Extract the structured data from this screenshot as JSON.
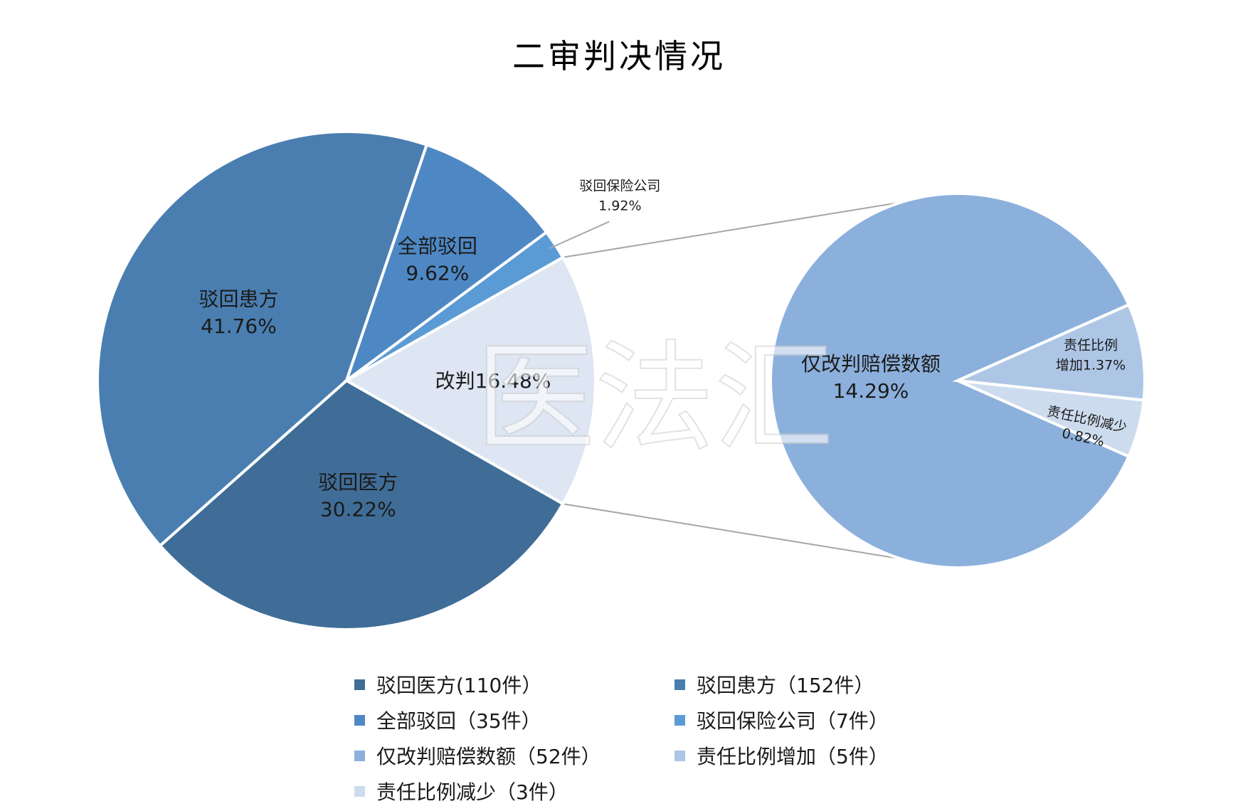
{
  "chart_data": {
    "type": "pie",
    "subtype": "pie-of-pie",
    "title": "二审判决情况",
    "main_pie": {
      "slices": [
        {
          "name": "驳回患方",
          "value": 41.76,
          "label_name": "驳回患方",
          "label_value": "41.76%",
          "color": "#4a7eb0"
        },
        {
          "name": "全部驳回",
          "value": 9.62,
          "label_name": "全部驳回",
          "label_value": "9.62%",
          "color": "#4e88c4"
        },
        {
          "name": "驳回保险公司",
          "value": 1.92,
          "label_name": "驳回保险公司",
          "label_value": "1.92%",
          "color": "#5b9bd5"
        },
        {
          "name": "改判",
          "value": 16.48,
          "label_name": "改判",
          "label_value": "16.48%",
          "color": "#dde6f2"
        },
        {
          "name": "驳回医方",
          "value": 30.22,
          "label_name": "驳回医方",
          "label_value": "30.22%",
          "color": "#3f6d97"
        }
      ]
    },
    "secondary_pie": {
      "slices": [
        {
          "name": "仅改判赔偿数额",
          "value": 14.29,
          "label_name": "仅改判赔偿数额",
          "label_value": "14.29%",
          "color": "#8cb0dc"
        },
        {
          "name": "责任比例增加",
          "value": 1.37,
          "label_name": "责任比例",
          "label_name2": "增加",
          "label_value": "1.37%",
          "color": "#aec6e6"
        },
        {
          "name": "责任比例减少",
          "value": 0.82,
          "label_name": "责任比例减少",
          "label_value": "0.82%",
          "color": "#cddbee"
        }
      ]
    },
    "legend": [
      {
        "label": "驳回医方(110件）",
        "color": "#3f6d97"
      },
      {
        "label": "驳回患方（152件）",
        "color": "#4a7eb0"
      },
      {
        "label": "全部驳回（35件）",
        "color": "#4e88c4"
      },
      {
        "label": "驳回保险公司（7件）",
        "color": "#5b9bd5"
      },
      {
        "label": "仅改判赔偿数额（52件）",
        "color": "#8cb0dc"
      },
      {
        "label": "责任比例增加（5件）",
        "color": "#aec6e6"
      },
      {
        "label": "责任比例减少（3件）",
        "color": "#cddbee"
      }
    ],
    "legend_placement": "bottom",
    "watermark": "医法汇"
  }
}
